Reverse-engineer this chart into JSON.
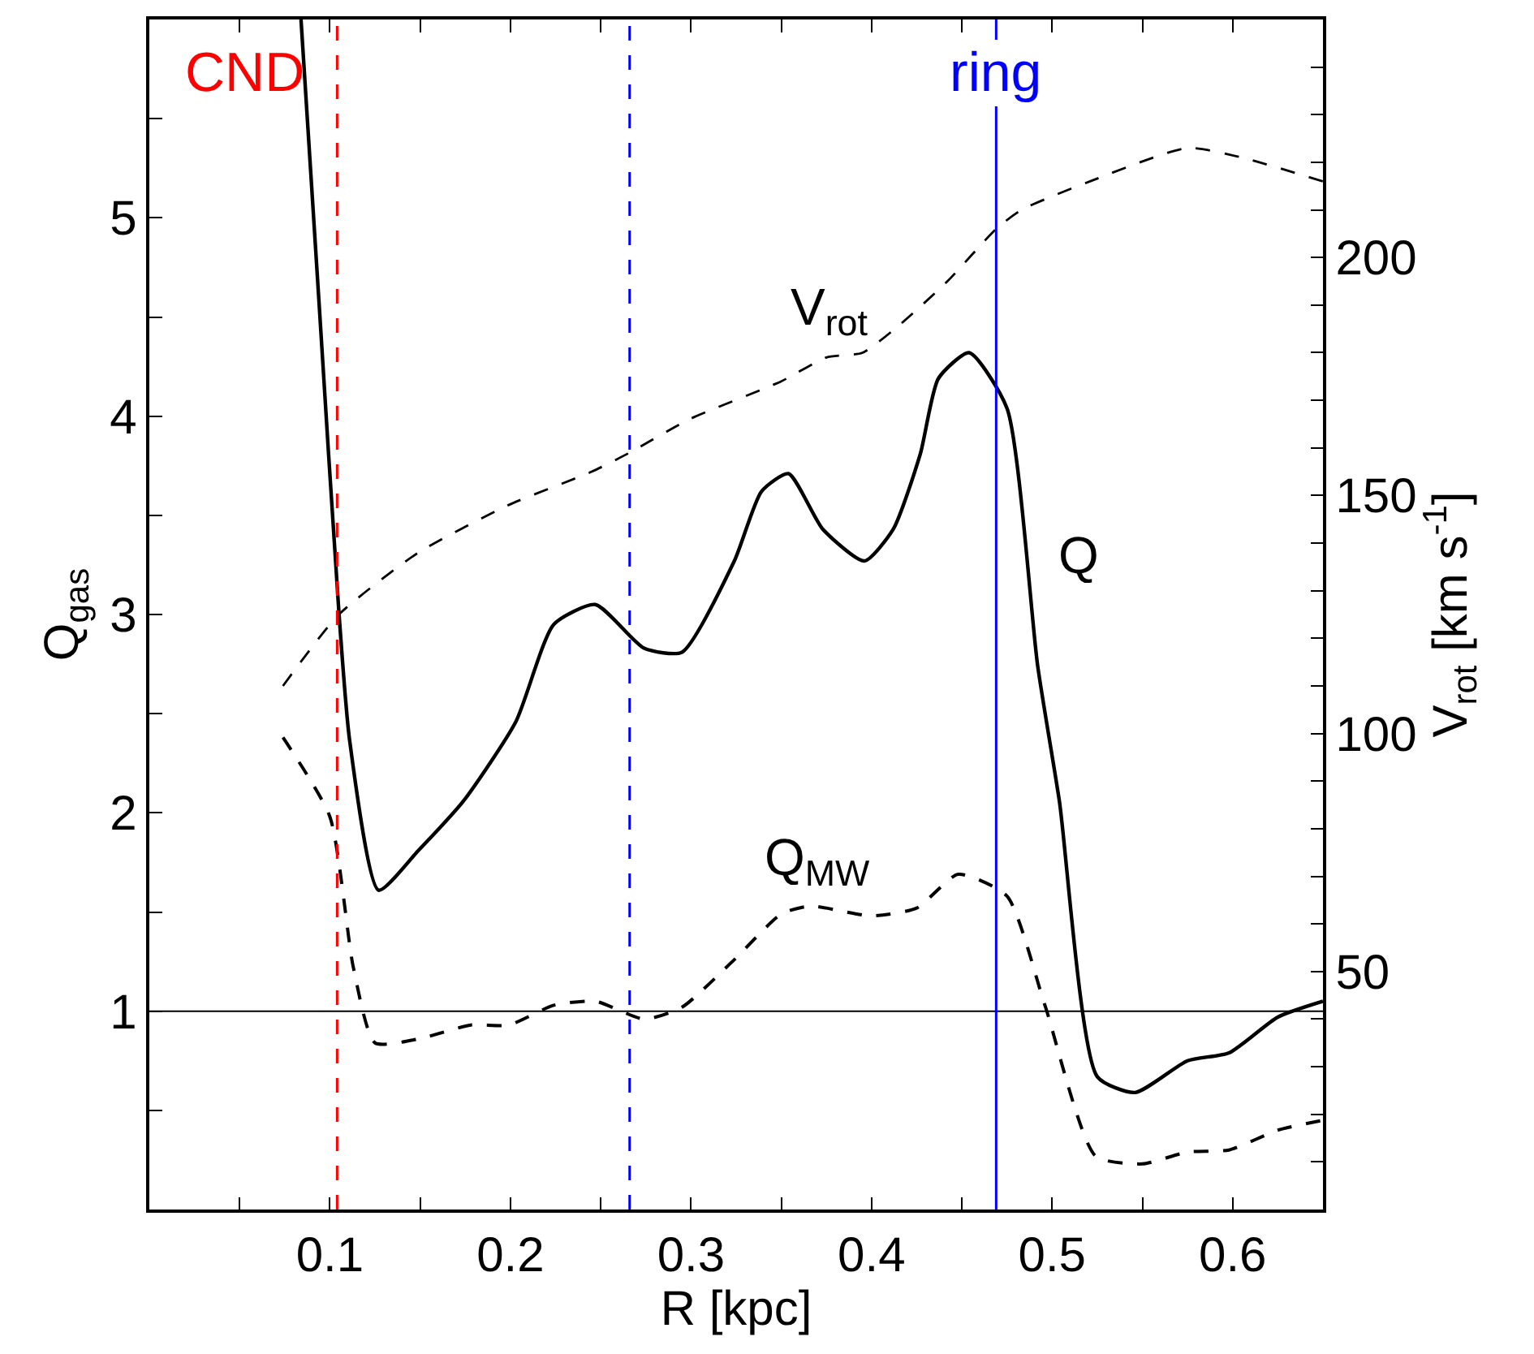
{
  "chart_data": {
    "type": "line",
    "xlabel": "R [kpc]",
    "ylabel": "Q$_{gas}$",
    "y2label": "V$_{rot}$ [km s$^{-1}$]",
    "xlim": [
      0,
      0.65
    ],
    "xticks": [
      {
        "value": 0.05,
        "label": null
      },
      0.1,
      {
        "value": 0.15,
        "label": null
      },
      0.2,
      {
        "value": 0.25,
        "label": null
      },
      0.3,
      {
        "value": 0.35,
        "label": null
      },
      0.4,
      {
        "value": 0.45,
        "label": null
      },
      0.5,
      {
        "value": 0.55,
        "label": null
      },
      0.6
    ],
    "ylim": [
      0,
      6
    ],
    "yticks": [
      {
        "value": 0.5,
        "label": null
      },
      1,
      {
        "value": 1.5,
        "label": null
      },
      2,
      {
        "value": 2.5,
        "label": null
      },
      3,
      {
        "value": 3.5,
        "label": null
      },
      4,
      {
        "value": 4.5,
        "label": null
      },
      5,
      {
        "value": 5.5,
        "label": null
      }
    ],
    "y2lim": [
      0,
      250
    ],
    "y2ticks": [
      {
        "value": 10,
        "label": null
      },
      {
        "value": 20,
        "label": null
      },
      {
        "value": 30,
        "label": null
      },
      {
        "value": 40,
        "label": null
      },
      50,
      {
        "value": 60,
        "label": null
      },
      {
        "value": 70,
        "label": null
      },
      {
        "value": 80,
        "label": null
      },
      {
        "value": 90,
        "label": null
      },
      100,
      {
        "value": 110,
        "label": null
      },
      {
        "value": 120,
        "label": null
      },
      {
        "value": 130,
        "label": null
      },
      {
        "value": 140,
        "label": null
      },
      150,
      {
        "value": 160,
        "label": null
      },
      {
        "value": 170,
        "label": null
      },
      {
        "value": 180,
        "label": null
      },
      {
        "value": 190,
        "label": null
      },
      200,
      {
        "value": 210,
        "label": null
      },
      {
        "value": 220,
        "label": null
      },
      {
        "value": 230,
        "label": null
      },
      {
        "value": 240,
        "label": null
      }
    ],
    "legend": false,
    "marker": "none",
    "series": [
      {
        "name": "Q",
        "color": "#000000",
        "line_style": "solid",
        "x": [
          0.084,
          0.094,
          0.105,
          0.111,
          0.127,
          0.149,
          0.174,
          0.203,
          0.224,
          0.247,
          0.274,
          0.295,
          0.324,
          0.339,
          0.354,
          0.373,
          0.396,
          0.412,
          0.427,
          0.437,
          0.454,
          0.475,
          0.492,
          0.504,
          0.525,
          0.546,
          0.575,
          0.598,
          0.625,
          0.65
        ],
        "values": [
          6.0,
          4.57,
          3.01,
          2.36,
          1.61,
          1.81,
          2.06,
          2.46,
          2.95,
          3.05,
          2.83,
          2.81,
          3.27,
          3.62,
          3.71,
          3.43,
          3.27,
          3.43,
          3.81,
          4.19,
          4.32,
          4.04,
          2.74,
          2.06,
          0.67,
          0.59,
          0.75,
          0.79,
          0.97,
          1.05
        ]
      },
      {
        "name": "Q$_{MW}$",
        "color": "#000000",
        "line_style": "dashed",
        "x": [
          0.074,
          0.1,
          0.113,
          0.125,
          0.149,
          0.178,
          0.199,
          0.224,
          0.247,
          0.274,
          0.295,
          0.324,
          0.35,
          0.366,
          0.4,
          0.425,
          0.448,
          0.475,
          0.496,
          0.524,
          0.55,
          0.575,
          0.598,
          0.625,
          0.65
        ],
        "values": [
          2.38,
          1.98,
          1.22,
          0.84,
          0.86,
          0.93,
          0.93,
          1.03,
          1.05,
          0.96,
          1.02,
          1.26,
          1.49,
          1.53,
          1.48,
          1.52,
          1.69,
          1.58,
          1.03,
          0.27,
          0.23,
          0.29,
          0.3,
          0.4,
          0.45
        ]
      },
      {
        "name": "V$_{rot}$",
        "color": "#000000",
        "line_style": "dashed",
        "axis": "y2",
        "x": [
          0.074,
          0.105,
          0.149,
          0.199,
          0.245,
          0.266,
          0.299,
          0.35,
          0.375,
          0.395,
          0.416,
          0.442,
          0.469,
          0.483,
          0.521,
          0.575,
          0.605,
          0.65
        ],
        "values": [
          110,
          125,
          138,
          148,
          155,
          159,
          166,
          174,
          179,
          180,
          186,
          195,
          206,
          210,
          216,
          223,
          221,
          216
        ]
      }
    ],
    "ref_lines": [
      {
        "axis": "y",
        "value": 1,
        "color": "#000000",
        "line_style": "solid"
      },
      {
        "axis": "x",
        "value": 0.104,
        "color": "#ff0000",
        "line_style": "dashed",
        "label": "CND"
      },
      {
        "axis": "x",
        "value": 0.266,
        "color": "#0000ff",
        "line_style": "dashed"
      },
      {
        "axis": "x",
        "value": 0.469,
        "color": "#0000ff",
        "line_style": "solid",
        "label": "ring"
      }
    ]
  }
}
